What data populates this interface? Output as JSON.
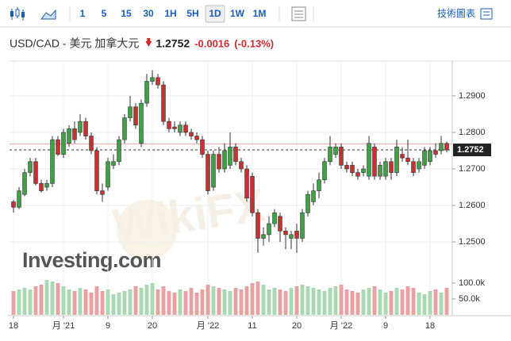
{
  "toolbar": {
    "intervals": [
      "1",
      "5",
      "15",
      "30",
      "1H",
      "5H",
      "1D",
      "1W",
      "1M"
    ],
    "active": "1D",
    "technical_chart": "技術圖表"
  },
  "chart_data": {
    "type": "candlestick",
    "title": "USD/CAD - 美元 加拿大元",
    "last_price": 1.2752,
    "change": -0.0016,
    "change_percent": {
      "value": -0.13,
      "label": "(-0.13%)"
    },
    "previous_close": 1.2768,
    "watermarks": [
      "Investing.com",
      "WikiFX"
    ],
    "categories": [
      "18",
      null,
      null,
      null,
      null,
      null,
      null,
      null,
      null,
      "月 '21",
      null,
      null,
      null,
      null,
      null,
      null,
      null,
      "9",
      null,
      null,
      null,
      null,
      null,
      null,
      null,
      "20",
      null,
      null,
      null,
      null,
      null,
      null,
      null,
      null,
      null,
      "月 '22",
      null,
      null,
      null,
      null,
      null,
      null,
      null,
      "11",
      null,
      null,
      null,
      null,
      null,
      null,
      null,
      "20",
      null,
      null,
      null,
      null,
      null,
      null,
      null,
      "月 '22",
      null,
      null,
      null,
      null,
      null,
      null,
      null,
      "9",
      null,
      null,
      null,
      null,
      null,
      null,
      null,
      "18",
      null,
      null,
      null
    ],
    "open": [
      1.261,
      1.2595,
      1.263,
      1.269,
      1.272,
      1.266,
      1.265,
      1.266,
      1.278,
      1.274,
      1.277,
      1.281,
      1.28,
      1.283,
      1.279,
      1.275,
      1.264,
      1.265,
      1.271,
      1.272,
      1.278,
      1.284,
      1.287,
      1.277,
      1.288,
      1.294,
      1.295,
      1.293,
      1.283,
      1.2815,
      1.28,
      1.282,
      1.28,
      1.279,
      1.278,
      1.274,
      1.265,
      1.274,
      1.27,
      1.271,
      1.276,
      1.272,
      1.27,
      1.268,
      1.258,
      1.251,
      1.252,
      1.255,
      1.257,
      1.253,
      1.251,
      1.253,
      1.251,
      1.258,
      1.261,
      1.264,
      1.267,
      1.272,
      1.274,
      1.276,
      1.271,
      1.271,
      1.269,
      1.269,
      1.268,
      1.276,
      1.268,
      1.268,
      1.272,
      1.269,
      1.274,
      1.273,
      1.272,
      1.27,
      1.271,
      1.272,
      1.275,
      1.275,
      1.277
    ],
    "high": [
      1.2615,
      1.265,
      1.27,
      1.273,
      1.273,
      1.267,
      1.267,
      1.279,
      1.279,
      1.281,
      1.282,
      1.283,
      1.285,
      1.284,
      1.28,
      1.276,
      1.266,
      1.273,
      1.274,
      1.279,
      1.285,
      1.29,
      1.288,
      1.289,
      1.296,
      1.297,
      1.296,
      1.294,
      1.284,
      1.283,
      1.283,
      1.283,
      1.281,
      1.28,
      1.279,
      1.275,
      1.275,
      1.276,
      1.277,
      1.28,
      1.277,
      1.273,
      1.271,
      1.269,
      1.259,
      1.254,
      1.257,
      1.259,
      1.258,
      1.254,
      1.253,
      1.255,
      1.259,
      1.264,
      1.266,
      1.269,
      1.273,
      1.279,
      1.277,
      1.277,
      1.272,
      1.272,
      1.27,
      1.271,
      1.279,
      1.277,
      1.272,
      1.273,
      1.273,
      1.278,
      1.276,
      1.278,
      1.273,
      1.273,
      1.276,
      1.276,
      1.277,
      1.279,
      1.2775
    ],
    "low": [
      1.258,
      1.259,
      1.2625,
      1.268,
      1.2655,
      1.2635,
      1.264,
      1.265,
      1.2735,
      1.273,
      1.276,
      1.277,
      1.279,
      1.278,
      1.274,
      1.263,
      1.261,
      1.264,
      1.27,
      1.271,
      1.277,
      1.283,
      1.281,
      1.276,
      1.287,
      1.293,
      1.292,
      1.282,
      1.28,
      1.28,
      1.279,
      1.279,
      1.278,
      1.277,
      1.273,
      1.263,
      1.264,
      1.269,
      1.269,
      1.27,
      1.271,
      1.269,
      1.261,
      1.257,
      1.247,
      1.249,
      1.25,
      1.254,
      1.25,
      1.248,
      1.248,
      1.247,
      1.25,
      1.257,
      1.26,
      1.262,
      1.266,
      1.271,
      1.273,
      1.27,
      1.269,
      1.268,
      1.267,
      1.268,
      1.267,
      1.267,
      1.267,
      1.267,
      1.267,
      1.268,
      1.272,
      1.271,
      1.268,
      1.269,
      1.27,
      1.271,
      1.273,
      1.274,
      1.2745
    ],
    "close": [
      1.2595,
      1.264,
      1.269,
      1.272,
      1.266,
      1.264,
      1.266,
      1.278,
      1.274,
      1.28,
      1.281,
      1.278,
      1.283,
      1.279,
      1.275,
      1.264,
      1.263,
      1.272,
      1.272,
      1.278,
      1.284,
      1.287,
      1.282,
      1.288,
      1.294,
      1.295,
      1.293,
      1.283,
      1.281,
      1.281,
      1.282,
      1.28,
      1.279,
      1.278,
      1.274,
      1.264,
      1.274,
      1.27,
      1.275,
      1.276,
      1.272,
      1.27,
      1.262,
      1.258,
      1.251,
      1.252,
      1.255,
      1.258,
      1.253,
      1.252,
      1.252,
      1.251,
      1.258,
      1.263,
      1.264,
      1.267,
      1.272,
      1.276,
      1.276,
      1.271,
      1.27,
      1.269,
      1.268,
      1.27,
      1.277,
      1.268,
      1.271,
      1.272,
      1.269,
      1.276,
      1.273,
      1.272,
      1.269,
      1.272,
      1.275,
      1.275,
      1.274,
      1.277,
      1.2752
    ],
    "volume": [
      75000,
      80000,
      85000,
      80000,
      90000,
      95000,
      110000,
      105000,
      100000,
      90000,
      80000,
      75000,
      85000,
      80000,
      70000,
      90000,
      75000,
      80000,
      65000,
      70000,
      75000,
      80000,
      90000,
      85000,
      95000,
      100000,
      80000,
      90000,
      75000,
      70000,
      80000,
      75000,
      85000,
      70000,
      80000,
      95000,
      90000,
      85000,
      80000,
      75000,
      85000,
      80000,
      90000,
      100000,
      105000,
      95000,
      80000,
      85000,
      80000,
      75000,
      85000,
      90000,
      95000,
      90000,
      85000,
      80000,
      75000,
      85000,
      90000,
      95000,
      80000,
      75000,
      70000,
      80000,
      85000,
      90000,
      80000,
      70000,
      75000,
      85000,
      80000,
      90000,
      85000,
      70000,
      65000,
      75000,
      80000,
      70000,
      85000
    ],
    "ylim": [
      1.2435,
      1.2978
    ],
    "yticks": [
      {
        "value": 1.29,
        "label": "1.2900"
      },
      {
        "value": 1.28,
        "label": "1.2800"
      },
      {
        "value": 1.27,
        "label": "1.2700"
      },
      {
        "value": 1.26,
        "label": "1.2600"
      },
      {
        "value": 1.25,
        "label": "1.2500"
      }
    ],
    "y2lim": [
      0,
      142500
    ],
    "y2ticks": [
      {
        "value": 100000,
        "label": "100.0k"
      },
      {
        "value": 50000,
        "label": "50.0k"
      }
    ],
    "grid": true,
    "colors": {
      "up": "#3fa046",
      "down": "#c8312f",
      "volume_up": "#a9d8b2",
      "volume_down": "#e8a1a0",
      "previous_close": "#f2a0a8"
    }
  }
}
